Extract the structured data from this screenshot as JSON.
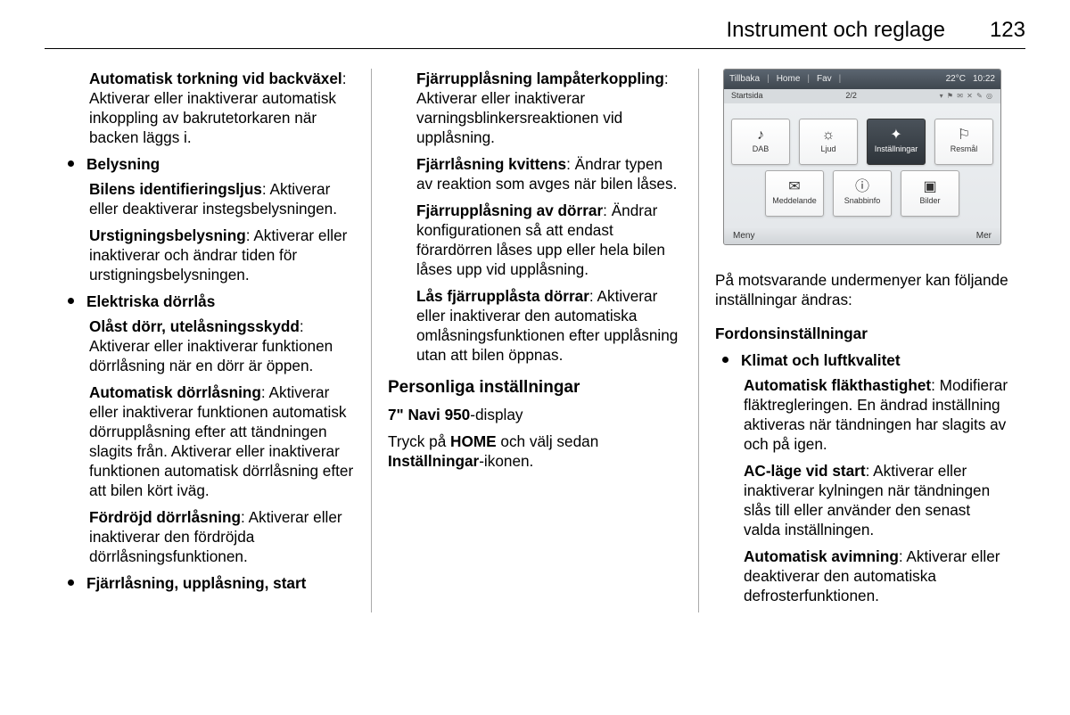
{
  "header": {
    "title": "Instrument och reglage",
    "page": "123"
  },
  "col1": {
    "p1_b": "Automatisk torkning vid backväxel",
    "p1_t": ": Aktiverar eller inakti­verar automatisk inkoppling av bakrutetorkaren när backen läggs i.",
    "b1": "Belysning",
    "p2_b": "Bilens identifieringsljus",
    "p2_t": ": Aktiverar eller deaktiverar instegsbelys­ningen.",
    "p3_b": "Urstigningsbelysning",
    "p3_t": ": Aktiverar eller inaktiverar och ändrar tiden för urstigningsbelysningen.",
    "b2": "Elektriska dörrlås",
    "p4_b": "Olåst dörr, utelåsningsskydd",
    "p4_t": ": Aktiverar eller inaktiverar funk­tionen dörrlåsning när en dörr är öppen.",
    "p5_b": "Automatisk dörrlåsning",
    "p5_t": ": Aktive­rar eller inaktiverar funktionen automatisk dörrupplåsning efter att tändningen slagits från. Akti­verar eller inaktiverar funktionen automatisk dörrlåsning efter att bilen kört iväg.",
    "p6_b": "Fördröjd dörrlåsning",
    "p6_t": ": Aktiverar eller inaktiverar den fördröjda dörrlåsningsfunktionen.",
    "b3": "Fjärrlåsning, upplåsning, start"
  },
  "col2": {
    "p1_b": "Fjärrupplåsning lampåterkopp­ling",
    "p1_t": ": Aktiverar eller inaktiverar varningsblinkersreaktionen vid upplåsning.",
    "p2_b": "Fjärrlåsning kvittens",
    "p2_t": ": Ändrar typen av reaktion som avges när bilen låses.",
    "p3_b": "Fjärrupplåsning av dörrar",
    "p3_t": ": Ändrar konfigurationen så att endast förardörren låses upp eller hela bilen låses upp vid upplåsning.",
    "p4_b": "Lås fjärrupplåsta dörrar",
    "p4_t": ": Aktive­rar eller inaktiverar den automat­iska omlåsningsfunktionen efter upplåsning utan att bilen öppnas.",
    "h1": "Personliga inställningar",
    "p5a": "7\" Navi 950",
    "p5b": "-display",
    "p6a": "Tryck på ",
    "p6b": "HOME",
    "p6c": " och välj sedan ",
    "p6d": "Inställningar",
    "p6e": "-ikonen."
  },
  "col3": {
    "intro": "På motsvarande undermenyer kan följande inställningar ändras:",
    "h1": "Fordonsinställningar",
    "b1": "Klimat och luftkvalitet",
    "p1_b": "Automatisk fläkthastighet",
    "p1_t": ": Modi­fierar fläktregleringen. En ändrad inställning aktiveras när tänd­ningen har slagits av och på igen.",
    "p2_b": "AC-läge vid start",
    "p2_t": ": Aktiverar eller inaktiverar kylningen när tänd­ningen slås till eller använder den senast valda inställningen.",
    "p3_b": "Automatisk avimning",
    "p3_t": ": Aktiverar eller deaktiverar den automatiska defrosterfunktionen."
  },
  "device": {
    "top": {
      "back": "Tillbaka",
      "home": "Home",
      "fav": "Fav",
      "temp": "22°C",
      "time": "10:22"
    },
    "sub": {
      "left": "Startsida",
      "mid": "2/2",
      "stat": "▾ ⚑ ✉ ✕ ✎ ◎"
    },
    "tiles": [
      {
        "icon": "♪",
        "label": "DAB"
      },
      {
        "icon": "☼",
        "label": "Ljud"
      },
      {
        "icon": "✦",
        "label": "Inställningar",
        "sel": true
      },
      {
        "icon": "⚐",
        "label": "Resmål"
      },
      {
        "icon": "✉",
        "label": "Meddelande"
      },
      {
        "icon": "ⓘ",
        "label": "Snabbinfo"
      },
      {
        "icon": "▣",
        "label": "Bilder"
      }
    ],
    "bot": {
      "left": "Meny",
      "right": "Mer"
    }
  }
}
